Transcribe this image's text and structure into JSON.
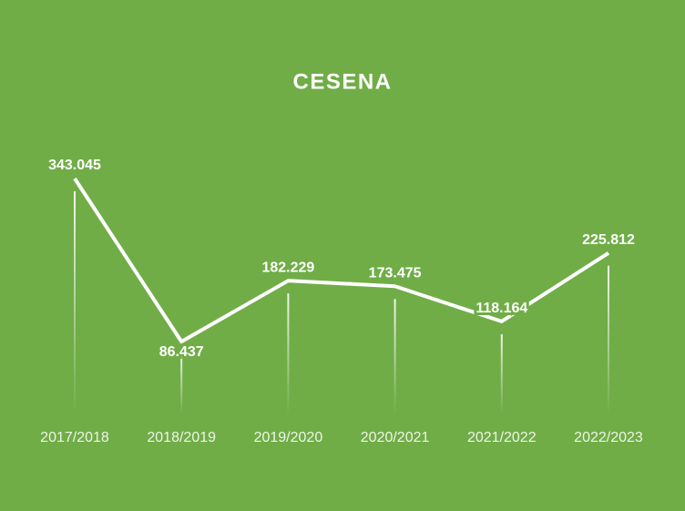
{
  "chart_data": {
    "type": "line",
    "title": "CESENA",
    "categories": [
      "2017/2018",
      "2018/2019",
      "2019/2020",
      "2020/2021",
      "2021/2022",
      "2022/2023"
    ],
    "values": [
      343045,
      86437,
      182229,
      173475,
      118164,
      225812
    ],
    "value_labels": [
      "343.045",
      "86.437",
      "182.229",
      "173.475",
      "118.164",
      "225.812"
    ],
    "color": "#ffffff",
    "background": "#70ad47"
  }
}
